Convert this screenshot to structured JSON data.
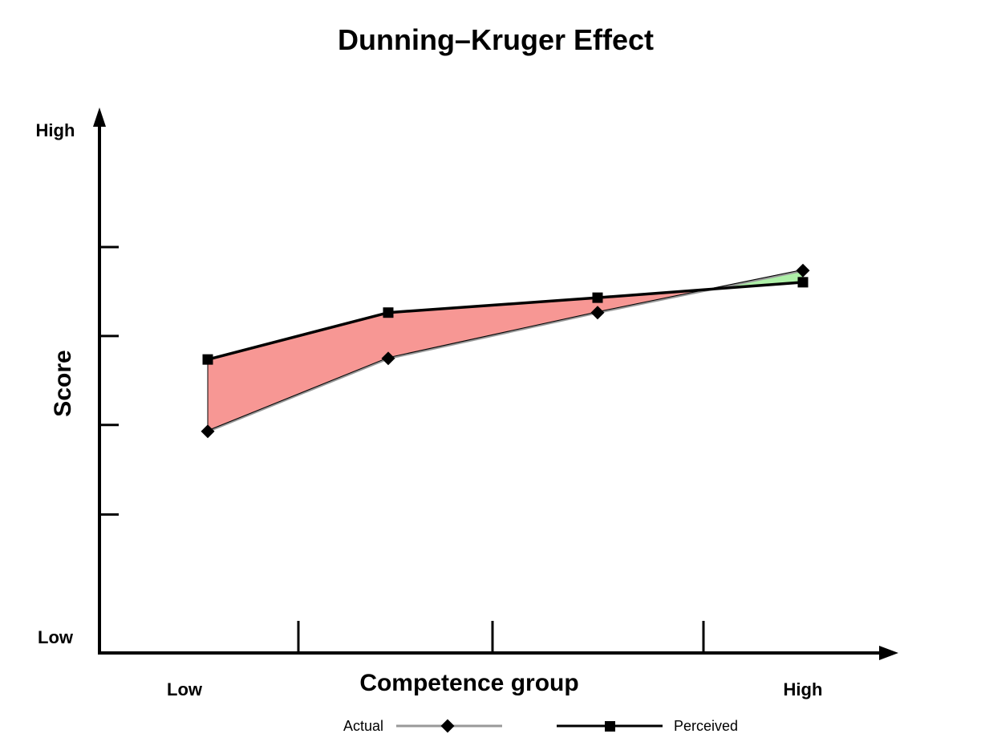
{
  "chart_data": {
    "type": "line",
    "title": "Dunning–Kruger Effect",
    "xlabel": "Competence group",
    "ylabel": "Score",
    "categories": [
      "Low",
      "",
      "",
      "High"
    ],
    "x_tick_labels": {
      "first": "Low",
      "last": "High"
    },
    "y_tick_labels": {
      "bottom": "Low",
      "top": "High"
    },
    "ylim": [
      0,
      100
    ],
    "y_ticks": [
      26,
      42.8,
      59.5,
      76.2
    ],
    "grid": false,
    "legend_position": "bottom",
    "series": [
      {
        "name": "Actual",
        "values": [
          41.6,
          55.3,
          63.9,
          71.8
        ],
        "color": "#999999",
        "marker": "diamond"
      },
      {
        "name": "Perceived",
        "values": [
          55.1,
          63.9,
          66.7,
          69.6
        ],
        "color": "#000000",
        "marker": "square"
      }
    ],
    "fill_overestimate_color": "#f79794",
    "fill_underestimate_color": "#aef0a8"
  }
}
